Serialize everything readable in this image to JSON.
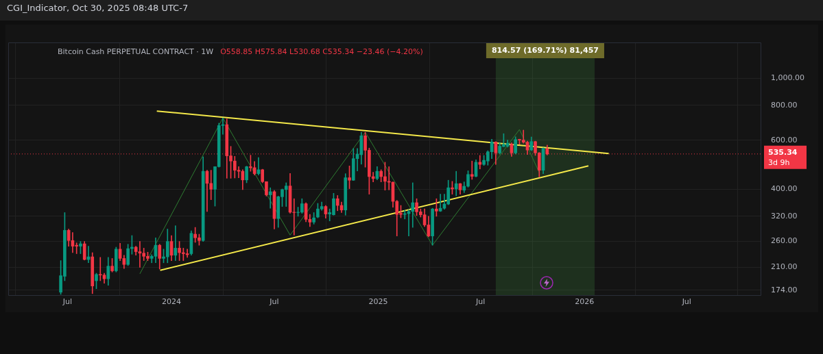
{
  "chart_data": {
    "type": "candlestick",
    "title": "CGI_Indicator, Oct 30, 2025 08:48 UTC-7",
    "subtitle": "Bitcoin Cash PERPETUAL CONTRACT · 1W",
    "annotations": [
      "O558.85 H575.84 L530.68 C535.34 −23.46 (−4.20%)"
    ],
    "x": [
      "2023-06-19",
      "2023-06-26",
      "2023-07-03",
      "2023-07-10",
      "2023-07-17",
      "2023-07-24",
      "2023-07-31",
      "2023-08-07",
      "2023-08-14",
      "2023-08-21",
      "2023-08-28",
      "2023-09-04",
      "2023-09-11",
      "2023-09-18",
      "2023-09-25",
      "2023-10-02",
      "2023-10-09",
      "2023-10-16",
      "2023-10-23",
      "2023-10-30",
      "2023-11-06",
      "2023-11-13",
      "2023-11-20",
      "2023-11-27",
      "2023-12-04",
      "2023-12-11",
      "2023-12-18",
      "2023-12-25",
      "2024-01-01",
      "2024-01-08",
      "2024-01-15",
      "2024-01-22",
      "2024-01-29",
      "2024-02-05",
      "2024-02-12",
      "2024-02-19",
      "2024-02-26",
      "2024-03-04",
      "2024-03-11",
      "2024-03-18",
      "2024-03-25",
      "2024-04-01",
      "2024-04-08",
      "2024-04-15",
      "2024-04-22",
      "2024-04-29",
      "2024-05-06",
      "2024-05-13",
      "2024-05-20",
      "2024-05-27",
      "2024-06-03",
      "2024-06-10",
      "2024-06-17",
      "2024-06-24",
      "2024-07-01",
      "2024-07-08",
      "2024-07-15",
      "2024-07-22",
      "2024-07-29",
      "2024-08-05",
      "2024-08-12",
      "2024-08-19",
      "2024-08-26",
      "2024-09-02",
      "2024-09-09",
      "2024-09-16",
      "2024-09-23",
      "2024-09-30",
      "2024-10-07",
      "2024-10-14",
      "2024-10-21",
      "2024-10-28",
      "2024-11-04",
      "2024-11-11",
      "2024-11-18",
      "2024-11-25",
      "2024-12-02",
      "2024-12-09",
      "2024-12-16",
      "2024-12-23",
      "2024-12-30",
      "2025-01-06",
      "2025-01-13",
      "2025-01-20",
      "2025-01-27",
      "2025-02-03",
      "2025-02-10",
      "2025-02-17",
      "2025-02-24",
      "2025-03-03",
      "2025-03-10",
      "2025-03-17",
      "2025-03-24",
      "2025-03-31",
      "2025-04-07",
      "2025-04-14",
      "2025-04-21",
      "2025-04-28",
      "2025-05-05",
      "2025-05-12",
      "2025-05-19",
      "2025-05-26",
      "2025-06-02",
      "2025-06-09",
      "2025-06-16",
      "2025-06-23",
      "2025-06-30",
      "2025-07-07",
      "2025-07-14",
      "2025-07-21",
      "2025-07-28",
      "2025-08-04",
      "2025-08-11",
      "2025-08-18",
      "2025-08-25",
      "2025-09-01",
      "2025-09-08",
      "2025-09-15",
      "2025-09-22",
      "2025-09-29",
      "2025-10-06",
      "2025-10-13",
      "2025-10-20",
      "2025-10-27"
    ],
    "ohlc": [
      [
        171,
        222,
        168,
        196
      ],
      [
        195,
        330,
        188,
        285
      ],
      [
        285,
        288,
        250,
        262
      ],
      [
        262,
        280,
        237,
        250
      ],
      [
        252,
        257,
        235,
        250
      ],
      [
        250,
        260,
        235,
        255
      ],
      [
        255,
        260,
        223,
        224
      ],
      [
        224,
        250,
        218,
        229
      ],
      [
        229,
        237,
        169,
        180
      ],
      [
        188,
        200,
        176,
        198
      ],
      [
        198,
        228,
        188,
        197
      ],
      [
        197,
        200,
        184,
        191
      ],
      [
        191,
        228,
        181,
        212
      ],
      [
        212,
        226,
        202,
        204
      ],
      [
        204,
        248,
        202,
        244
      ],
      [
        244,
        256,
        222,
        226
      ],
      [
        226,
        232,
        208,
        215
      ],
      [
        215,
        254,
        213,
        245
      ],
      [
        245,
        273,
        234,
        248
      ],
      [
        248,
        250,
        232,
        239
      ],
      [
        239,
        260,
        210,
        236
      ],
      [
        236,
        246,
        222,
        230
      ],
      [
        230,
        238,
        222,
        226
      ],
      [
        226,
        233,
        218,
        230
      ],
      [
        230,
        268,
        218,
        252
      ],
      [
        252,
        254,
        207,
        226
      ],
      [
        226,
        244,
        218,
        229
      ],
      [
        229,
        288,
        218,
        260
      ],
      [
        260,
        273,
        222,
        232
      ],
      [
        232,
        296,
        222,
        246
      ],
      [
        246,
        260,
        222,
        237
      ],
      [
        237,
        246,
        222,
        235
      ],
      [
        235,
        244,
        228,
        233
      ],
      [
        235,
        284,
        232,
        278
      ],
      [
        276,
        292,
        258,
        268
      ],
      [
        268,
        276,
        252,
        262
      ],
      [
        262,
        523,
        260,
        464
      ],
      [
        464,
        468,
        333,
        420
      ],
      [
        420,
        468,
        367,
        400
      ],
      [
        400,
        482,
        348,
        482
      ],
      [
        482,
        690,
        480,
        677
      ],
      [
        677,
        720,
        630,
        682
      ],
      [
        682,
        715,
        438,
        527
      ],
      [
        527,
        570,
        438,
        505
      ],
      [
        505,
        525,
        439,
        468
      ],
      [
        468,
        482,
        440,
        464
      ],
      [
        464,
        470,
        399,
        432
      ],
      [
        432,
        484,
        422,
        482
      ],
      [
        482,
        530,
        464,
        478
      ],
      [
        478,
        503,
        450,
        455
      ],
      [
        455,
        520,
        450,
        470
      ],
      [
        470,
        472,
        422,
        426
      ],
      [
        426,
        426,
        378,
        382
      ],
      [
        382,
        405,
        342,
        392
      ],
      [
        392,
        396,
        288,
        314
      ],
      [
        314,
        378,
        292,
        376
      ],
      [
        376,
        401,
        347,
        399
      ],
      [
        399,
        422,
        347,
        411
      ],
      [
        411,
        456,
        328,
        331
      ],
      [
        331,
        370,
        274,
        330
      ],
      [
        330,
        345,
        320,
        331
      ],
      [
        331,
        370,
        328,
        355
      ],
      [
        355,
        358,
        306,
        312
      ],
      [
        312,
        325,
        294,
        305
      ],
      [
        305,
        330,
        300,
        316
      ],
      [
        318,
        356,
        316,
        340
      ],
      [
        340,
        360,
        336,
        347
      ],
      [
        347,
        350,
        315,
        326
      ],
      [
        326,
        340,
        308,
        330
      ],
      [
        324,
        387,
        323,
        370
      ],
      [
        370,
        380,
        335,
        350
      ],
      [
        350,
        360,
        330,
        337
      ],
      [
        337,
        455,
        323,
        440
      ],
      [
        440,
        485,
        402,
        431
      ],
      [
        431,
        560,
        430,
        515
      ],
      [
        515,
        560,
        465,
        535
      ],
      [
        532,
        640,
        492,
        622
      ],
      [
        622,
        640,
        480,
        552
      ],
      [
        552,
        562,
        384,
        444
      ],
      [
        444,
        460,
        425,
        437
      ],
      [
        437,
        482,
        432,
        464
      ],
      [
        464,
        470,
        425,
        444
      ],
      [
        444,
        500,
        397,
        427
      ],
      [
        427,
        482,
        398,
        424
      ],
      [
        424,
        425,
        345,
        362
      ],
      [
        362,
        365,
        272,
        325
      ],
      [
        328,
        350,
        316,
        325
      ],
      [
        325,
        336,
        313,
        327
      ],
      [
        327,
        338,
        272,
        333
      ],
      [
        333,
        422,
        292,
        358
      ],
      [
        358,
        370,
        322,
        332
      ],
      [
        332,
        340,
        318,
        324
      ],
      [
        324,
        340,
        294,
        298
      ],
      [
        298,
        320,
        270,
        272
      ],
      [
        272,
        342,
        252,
        340
      ],
      [
        340,
        370,
        320,
        334
      ],
      [
        334,
        384,
        333,
        342
      ],
      [
        342,
        384,
        339,
        354
      ],
      [
        354,
        431,
        352,
        405
      ],
      [
        405,
        427,
        384,
        401
      ],
      [
        401,
        464,
        379,
        419
      ],
      [
        419,
        420,
        384,
        398
      ],
      [
        397,
        425,
        389,
        410
      ],
      [
        410,
        466,
        407,
        452
      ],
      [
        452,
        505,
        434,
        445
      ],
      [
        445,
        510,
        443,
        500
      ],
      [
        500,
        529,
        473,
        491
      ],
      [
        491,
        529,
        487,
        508
      ],
      [
        505,
        550,
        488,
        545
      ],
      [
        545,
        605,
        515,
        591
      ],
      [
        591,
        593,
        491,
        540
      ],
      [
        540,
        587,
        535,
        571
      ],
      [
        569,
        633,
        568,
        580
      ],
      [
        571,
        600,
        566,
        585
      ],
      [
        580,
        587,
        525,
        540
      ],
      [
        540,
        617,
        535,
        603
      ],
      [
        604,
        605,
        580,
        600
      ],
      [
        600,
        652,
        585,
        590
      ],
      [
        590,
        595,
        533,
        553
      ],
      [
        553,
        616,
        550,
        593
      ],
      [
        593,
        595,
        529,
        540
      ],
      [
        540,
        542,
        443,
        468
      ],
      [
        468,
        563,
        455,
        561
      ],
      [
        558.85,
        575.84,
        530.68,
        535.34
      ]
    ],
    "series": [
      {
        "type": "line",
        "color": "#f5e94a",
        "x": [
          "2023-12-06",
          "2026-02-13"
        ],
        "values": [
          763,
          537
        ]
      },
      {
        "type": "line",
        "color": "#f5e94a",
        "x": [
          "2023-12-12",
          "2026-01-08"
        ],
        "values": [
          205,
          485
        ]
      },
      {
        "type": "line",
        "color": "#2e7d32",
        "x": [
          "2023-11-06",
          "2024-04-01",
          "2024-07-29",
          "2024-12-09",
          "2025-04-07",
          "2025-09-08",
          "2025-10-13"
        ],
        "values": [
          199,
          721,
          274,
          641,
          252,
          655,
          459
        ]
      }
    ],
    "log": true,
    "grid": true,
    "marker": "none",
    "xlim": [
      "2023-03-18",
      "2026-11-10"
    ],
    "xticks": [
      {
        "value": "2023-07-01",
        "label": "Jul"
      },
      {
        "value": "2024-01-01",
        "label": "2024"
      },
      {
        "value": "2024-07-01",
        "label": "Jul"
      },
      {
        "value": "2025-01-01",
        "label": "2025"
      },
      {
        "value": "2025-07-01",
        "label": "Jul"
      },
      {
        "value": "2026-01-01",
        "label": "2026"
      },
      {
        "value": "2026-07-01",
        "label": "Jul"
      }
    ],
    "ylim": [
      166,
      1344
    ],
    "yticks": [
      {
        "value": 174,
        "label": "174.00"
      },
      {
        "value": 210,
        "label": "210.00"
      },
      {
        "value": 260,
        "label": "260.00"
      },
      {
        "value": 320,
        "label": "320.00"
      },
      {
        "value": 400,
        "label": "400.00"
      },
      {
        "value": 600,
        "label": "600.00"
      },
      {
        "value": 800,
        "label": "800.00"
      },
      {
        "value": 1000,
        "label": "1,000.00"
      }
    ],
    "ref_lines": [
      {
        "axis": "y",
        "value": 535.34,
        "label": "535.34\n3d 9h",
        "color": "#f23645",
        "line_style": "dotted"
      }
    ],
    "bands": [
      {
        "axis": "x",
        "from": "2025-07-28",
        "to": "2026-01-19",
        "label": "814.57 (169.71%) 81,457",
        "color": "#4caf50"
      }
    ]
  }
}
